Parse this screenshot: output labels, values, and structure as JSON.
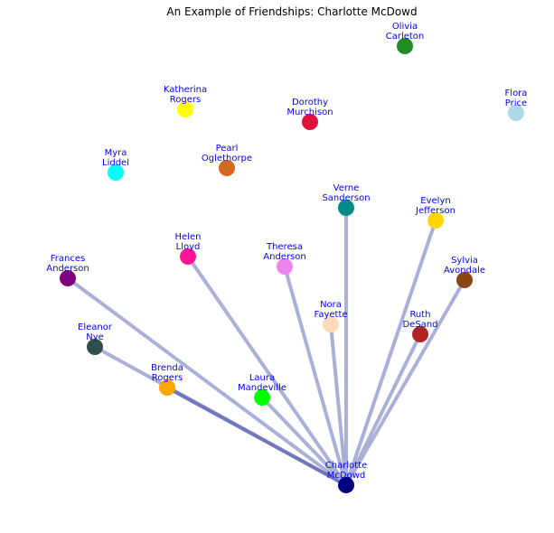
{
  "title": "An Example of Friendships: Charlotte McDowd",
  "colors": {
    "label": "#0000ff",
    "edge": "#aab0d8",
    "edge_strong": "#7078bc"
  },
  "center": "charlotte",
  "nodes": [
    {
      "id": "olivia",
      "lines": [
        "Olivia",
        "Carleton"
      ],
      "color": "#228b22"
    },
    {
      "id": "flora",
      "lines": [
        "Flora",
        "Price"
      ],
      "color": "#add8e6"
    },
    {
      "id": "katherina",
      "lines": [
        "Katherina",
        "Rogers"
      ],
      "color": "#ffff00"
    },
    {
      "id": "dorothy",
      "lines": [
        "Dorothy",
        "Murchison"
      ],
      "color": "#dc143c"
    },
    {
      "id": "myra",
      "lines": [
        "Myra",
        "Liddel"
      ],
      "color": "#00ffff"
    },
    {
      "id": "pearl",
      "lines": [
        "Pearl",
        "Oglethorpe"
      ],
      "color": "#d2691e"
    },
    {
      "id": "verne",
      "lines": [
        "Verne",
        "Sanderson"
      ],
      "color": "#008b8b"
    },
    {
      "id": "evelyn",
      "lines": [
        "Evelyn",
        "Jefferson"
      ],
      "color": "#ffd700"
    },
    {
      "id": "helen",
      "lines": [
        "Helen",
        "Lloyd"
      ],
      "color": "#ff1493"
    },
    {
      "id": "theresa",
      "lines": [
        "Theresa",
        "Anderson"
      ],
      "color": "#ee82ee"
    },
    {
      "id": "frances",
      "lines": [
        "Frances",
        "Anderson"
      ],
      "color": "#800080"
    },
    {
      "id": "sylvia",
      "lines": [
        "Sylvia",
        "Avondale"
      ],
      "color": "#8b4513"
    },
    {
      "id": "nora",
      "lines": [
        "Nora",
        "Fayette"
      ],
      "color": "#ffdab9"
    },
    {
      "id": "ruth",
      "lines": [
        "Ruth",
        "DeSand"
      ],
      "color": "#b22222"
    },
    {
      "id": "eleanor",
      "lines": [
        "Eleanor",
        "Nye"
      ],
      "color": "#2f4f4f"
    },
    {
      "id": "brenda",
      "lines": [
        "Brenda",
        "Rogers"
      ],
      "color": "#ffa500"
    },
    {
      "id": "laura",
      "lines": [
        "Laura",
        "Mandeville"
      ],
      "color": "#00ff00"
    },
    {
      "id": "charlotte",
      "lines": [
        "Charlotte",
        "McDowd"
      ],
      "color": "#000080"
    }
  ],
  "edges": [
    {
      "to": "verne"
    },
    {
      "to": "evelyn"
    },
    {
      "to": "helen"
    },
    {
      "to": "theresa"
    },
    {
      "to": "frances"
    },
    {
      "to": "sylvia"
    },
    {
      "to": "nora"
    },
    {
      "to": "ruth"
    },
    {
      "to": "eleanor"
    },
    {
      "to": "brenda",
      "strong": true
    },
    {
      "to": "laura"
    }
  ]
}
